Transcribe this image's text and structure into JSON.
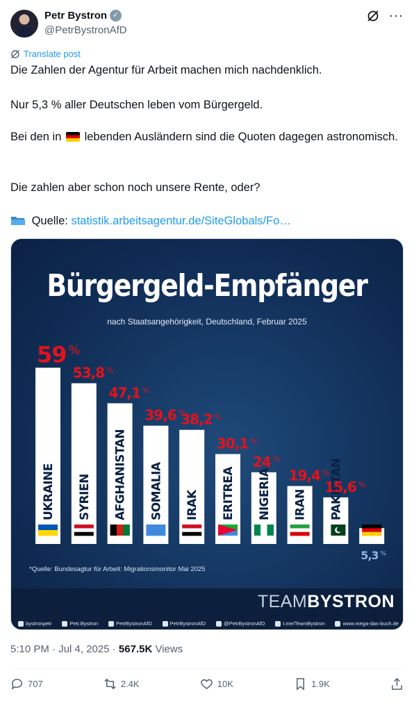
{
  "author": {
    "display_name": "Petr Bystron",
    "handle": "@PetrBystronAfD",
    "verified": true
  },
  "translate_label": "Translate post",
  "tweet": {
    "paragraph1": "Die Zahlen der Agentur für Arbeit machen mich nachdenklich.",
    "paragraph2": "Nur 5,3 % aller Deutschen leben vom Bürgergeld.",
    "paragraph3_before": "Bei den in",
    "paragraph3_after": "lebenden Ausländern sind die Quoten dagegen astronomisch.",
    "paragraph4": "Die zahlen aber schon noch unsere Rente, oder?",
    "source_label": "Quelle:",
    "source_link": "statistik.arbeitsagentur.de/SiteGlobals/Fo…"
  },
  "media": {
    "title": "Bürgergeld-Empfänger",
    "subtitle": "nach Staatsangehörigkeit, Deutschland, Februar 2025",
    "source_note": "*Quelle: Bundesagtur für Arbeit: Migrationsmonitor Mai 2025",
    "brand_light": "TEAM",
    "brand_bold": "BYSTRON",
    "social": [
      "bystronpetr",
      "Petr.Bystron",
      "PetrBystronAfD",
      "PetrBystronAfD",
      "@PetrBystronAfD",
      "t.me/TeamBystron",
      "www.mega-das-buch.de"
    ]
  },
  "chart_data": {
    "type": "bar",
    "title": "Bürgergeld-Empfänger",
    "subtitle": "nach Staatsangehörigkeit, Deutschland, Februar 2025",
    "categories": [
      "UKRAINE",
      "SYRIEN",
      "AFGHANISTAN",
      "SOMALIA",
      "IRAK",
      "ERITREA",
      "NIGERIA",
      "IRAN",
      "PAKISTAN",
      ""
    ],
    "values": [
      59,
      53.8,
      47.1,
      39.6,
      38.2,
      30.1,
      24,
      19.4,
      15.6,
      5.3
    ],
    "value_labels": [
      "59",
      "53,8",
      "47,1",
      "39,6",
      "38,2",
      "30,1",
      "24",
      "19,4",
      "15,6",
      "5,3"
    ],
    "unit": "%",
    "colors": {
      "value_text": "#e3121b",
      "germany_value_text": "#8fb6e6",
      "bar": "#ffffff"
    }
  },
  "meta": {
    "time": "5:10 PM · Jul 4, 2025 ·",
    "views_count": "567.5K",
    "views_label": "Views"
  },
  "actions": {
    "replies": "707",
    "reposts": "2.4K",
    "likes": "10K",
    "bookmarks": "1.9K"
  }
}
